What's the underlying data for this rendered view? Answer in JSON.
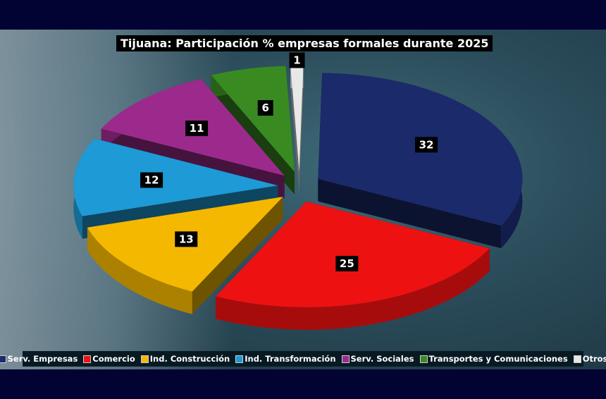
{
  "chart_data": {
    "type": "pie",
    "title": "Tijuana: Participación % empresas formales durante 2025",
    "categories": [
      "Serv. Empresas",
      "Comercio",
      "Ind. Construcción",
      "Ind. Transformación",
      "Serv. Sociales",
      "Transportes y Comunicaciones",
      "Otros"
    ],
    "values": [
      32,
      25,
      13,
      12,
      11,
      6,
      1
    ],
    "colors": [
      "#1b2a6b",
      "#ee1111",
      "#f5b800",
      "#1e9ad6",
      "#9c2a8c",
      "#3a8a22",
      "#e8e8e8"
    ],
    "legend_position": "bottom",
    "style": "3d-exploded"
  }
}
